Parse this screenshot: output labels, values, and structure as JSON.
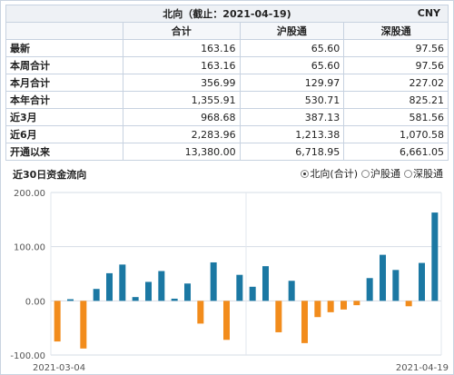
{
  "table": {
    "title": "北向（截止：2021-04-19)",
    "unit": "CNY",
    "columns": [
      "合计",
      "沪股通",
      "深股通"
    ],
    "rows": [
      {
        "label": "最新",
        "values": [
          "163.16",
          "65.60",
          "97.56"
        ]
      },
      {
        "label": "本周合计",
        "values": [
          "163.16",
          "65.60",
          "97.56"
        ]
      },
      {
        "label": "本月合计",
        "values": [
          "356.99",
          "129.97",
          "227.02"
        ]
      },
      {
        "label": "本年合计",
        "values": [
          "1,355.91",
          "530.71",
          "825.21"
        ]
      },
      {
        "label": "近3月",
        "values": [
          "968.68",
          "387.13",
          "581.56"
        ]
      },
      {
        "label": "近6月",
        "values": [
          "2,283.96",
          "1,213.38",
          "1,070.58"
        ]
      },
      {
        "label": "开通以来",
        "values": [
          "13,380.00",
          "6,718.95",
          "6,661.05"
        ]
      }
    ]
  },
  "chart_header": "近30日资金流向",
  "radios": [
    {
      "label": "北向(合计)",
      "selected": true
    },
    {
      "label": "沪股通",
      "selected": false
    },
    {
      "label": "深股通",
      "selected": false
    }
  ],
  "colors": {
    "positive": "#1b78a3",
    "negative": "#f28c1c"
  },
  "chart_data": {
    "type": "bar",
    "x_start_label": "2021-03-04",
    "x_end_label": "2021-04-19",
    "values": [
      -75,
      3,
      -88,
      22,
      51,
      67,
      7,
      35,
      55,
      4,
      32,
      -42,
      71,
      -72,
      48,
      26,
      64,
      -58,
      37,
      -78,
      -30,
      -21,
      -16,
      -8,
      42,
      85,
      57,
      -10,
      70,
      163
    ],
    "ylim": [
      -100,
      200
    ],
    "yticks": [
      "200.00",
      "100.00",
      "0.00",
      "-100.00"
    ],
    "grid": true
  }
}
